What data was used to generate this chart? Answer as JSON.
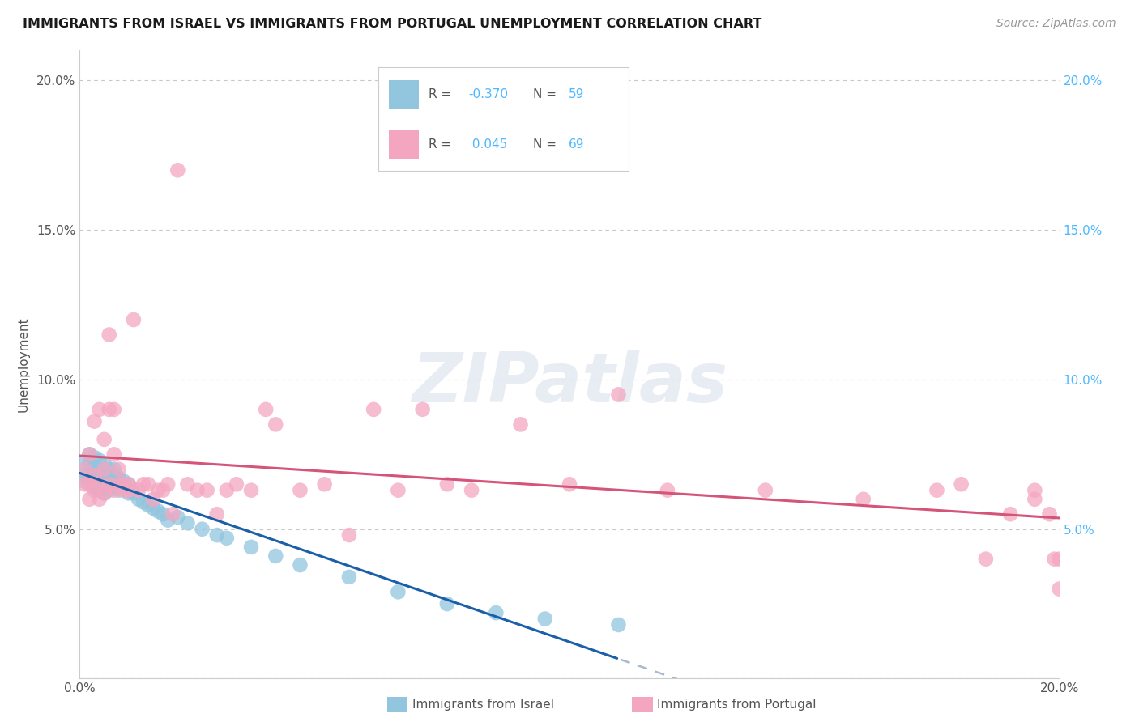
{
  "title": "IMMIGRANTS FROM ISRAEL VS IMMIGRANTS FROM PORTUGAL UNEMPLOYMENT CORRELATION CHART",
  "source": "Source: ZipAtlas.com",
  "ylabel": "Unemployment",
  "israel_color": "#92c5de",
  "portugal_color": "#f4a6c0",
  "israel_R": -0.37,
  "israel_N": 59,
  "portugal_R": 0.045,
  "portugal_N": 69,
  "trend_israel_color": "#1a5fa8",
  "trend_portugal_color": "#d4547a",
  "trend_israel_dashed_color": "#aab8cc",
  "bg_color": "#ffffff",
  "grid_color": "#c8c8c8",
  "israel_x": [
    0.001,
    0.001,
    0.001,
    0.002,
    0.002,
    0.002,
    0.002,
    0.003,
    0.003,
    0.003,
    0.003,
    0.003,
    0.004,
    0.004,
    0.004,
    0.004,
    0.004,
    0.005,
    0.005,
    0.005,
    0.005,
    0.005,
    0.006,
    0.006,
    0.006,
    0.006,
    0.007,
    0.007,
    0.007,
    0.007,
    0.008,
    0.008,
    0.008,
    0.009,
    0.009,
    0.01,
    0.01,
    0.011,
    0.012,
    0.013,
    0.014,
    0.015,
    0.016,
    0.017,
    0.018,
    0.02,
    0.022,
    0.025,
    0.028,
    0.03,
    0.035,
    0.04,
    0.045,
    0.055,
    0.065,
    0.075,
    0.085,
    0.095,
    0.11
  ],
  "israel_y": [
    0.066,
    0.068,
    0.072,
    0.065,
    0.068,
    0.072,
    0.075,
    0.064,
    0.067,
    0.069,
    0.071,
    0.074,
    0.063,
    0.066,
    0.068,
    0.07,
    0.073,
    0.062,
    0.065,
    0.067,
    0.069,
    0.072,
    0.063,
    0.065,
    0.068,
    0.07,
    0.064,
    0.066,
    0.068,
    0.07,
    0.063,
    0.065,
    0.067,
    0.064,
    0.066,
    0.062,
    0.065,
    0.062,
    0.06,
    0.059,
    0.058,
    0.057,
    0.056,
    0.055,
    0.053,
    0.054,
    0.052,
    0.05,
    0.048,
    0.047,
    0.044,
    0.041,
    0.038,
    0.034,
    0.029,
    0.025,
    0.022,
    0.02,
    0.018
  ],
  "portugal_x": [
    0.001,
    0.001,
    0.002,
    0.002,
    0.002,
    0.003,
    0.003,
    0.003,
    0.004,
    0.004,
    0.004,
    0.005,
    0.005,
    0.005,
    0.006,
    0.006,
    0.006,
    0.007,
    0.007,
    0.007,
    0.008,
    0.008,
    0.009,
    0.009,
    0.01,
    0.01,
    0.011,
    0.012,
    0.013,
    0.014,
    0.015,
    0.016,
    0.017,
    0.018,
    0.019,
    0.02,
    0.022,
    0.024,
    0.026,
    0.028,
    0.03,
    0.032,
    0.035,
    0.038,
    0.04,
    0.045,
    0.05,
    0.055,
    0.06,
    0.065,
    0.07,
    0.075,
    0.08,
    0.09,
    0.1,
    0.11,
    0.12,
    0.14,
    0.16,
    0.175,
    0.18,
    0.185,
    0.19,
    0.195,
    0.195,
    0.198,
    0.199,
    0.2,
    0.2
  ],
  "portugal_y": [
    0.065,
    0.07,
    0.06,
    0.065,
    0.075,
    0.063,
    0.068,
    0.086,
    0.06,
    0.065,
    0.09,
    0.062,
    0.07,
    0.08,
    0.065,
    0.09,
    0.115,
    0.063,
    0.075,
    0.09,
    0.065,
    0.07,
    0.063,
    0.065,
    0.063,
    0.065,
    0.12,
    0.063,
    0.065,
    0.065,
    0.06,
    0.063,
    0.063,
    0.065,
    0.055,
    0.17,
    0.065,
    0.063,
    0.063,
    0.055,
    0.063,
    0.065,
    0.063,
    0.09,
    0.085,
    0.063,
    0.065,
    0.048,
    0.09,
    0.063,
    0.09,
    0.065,
    0.063,
    0.085,
    0.065,
    0.095,
    0.063,
    0.063,
    0.06,
    0.063,
    0.065,
    0.04,
    0.055,
    0.06,
    0.063,
    0.055,
    0.04,
    0.03,
    0.04
  ],
  "watermark_text": "ZIPatlas",
  "xlim": [
    0.0,
    0.2
  ],
  "ylim": [
    0.0,
    0.21
  ],
  "ytick_values": [
    0.0,
    0.05,
    0.1,
    0.15,
    0.2
  ],
  "ytick_labels_left": [
    "",
    "5.0%",
    "10.0%",
    "15.0%",
    "20.0%"
  ],
  "ytick_labels_right": [
    "",
    "5.0%",
    "10.0%",
    "15.0%",
    "20.0%"
  ]
}
